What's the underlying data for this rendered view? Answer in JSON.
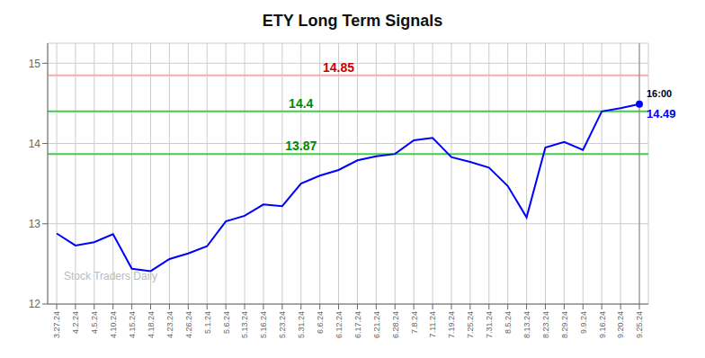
{
  "chart_data": {
    "type": "line",
    "title": "ETY Long Term Signals",
    "categories": [
      "3.27.24",
      "4.2.24",
      "4.5.24",
      "4.10.24",
      "4.15.24",
      "4.18.24",
      "4.23.24",
      "4.26.24",
      "5.1.24",
      "5.6.24",
      "5.13.24",
      "5.16.24",
      "5.23.24",
      "5.31.24",
      "6.6.24",
      "6.12.24",
      "6.17.24",
      "6.21.24",
      "6.28.24",
      "7.8.24",
      "7.11.24",
      "7.19.24",
      "7.25.24",
      "7.31.24",
      "8.5.24",
      "8.13.24",
      "8.23.24",
      "8.29.24",
      "9.9.24",
      "9.16.24",
      "9.20.24",
      "9.25.24"
    ],
    "values": [
      12.88,
      12.73,
      12.77,
      12.87,
      12.44,
      12.41,
      12.56,
      12.63,
      12.72,
      13.03,
      13.1,
      13.24,
      13.22,
      13.5,
      13.6,
      13.67,
      13.79,
      13.84,
      13.87,
      14.04,
      14.07,
      13.83,
      13.77,
      13.7,
      13.47,
      13.08,
      13.95,
      14.02,
      13.92,
      14.4,
      14.44,
      14.49
    ],
    "color": "blue",
    "ylim": [
      12.0,
      15.25
    ],
    "yticks": [
      12,
      13,
      14,
      15
    ],
    "grid": true,
    "hlines": [
      {
        "value": 14.85,
        "label": "14.85",
        "color": "#ffaaaa",
        "label_color": "#cc0000",
        "label_x": "6.12.24"
      },
      {
        "value": 14.4,
        "label": "14.4",
        "color": "#44cc44",
        "label_color": "#008800",
        "label_x": "5.31.24"
      },
      {
        "value": 13.87,
        "label": "13.87",
        "color": "#44cc44",
        "label_color": "#008800",
        "label_x": "5.31.24"
      }
    ],
    "vline": {
      "x": "9.25.24",
      "color": "#888888"
    },
    "annotations": [
      {
        "text": "16:00",
        "x": "9.25.24",
        "y": 14.49,
        "color": "black"
      },
      {
        "text": "14.49",
        "x": "9.25.24",
        "y": 14.49,
        "color": "blue"
      },
      {
        "text": "Stock Traders Daily",
        "x": "3.27.24",
        "y": 12.28,
        "color": "#bbbbbb"
      }
    ]
  }
}
